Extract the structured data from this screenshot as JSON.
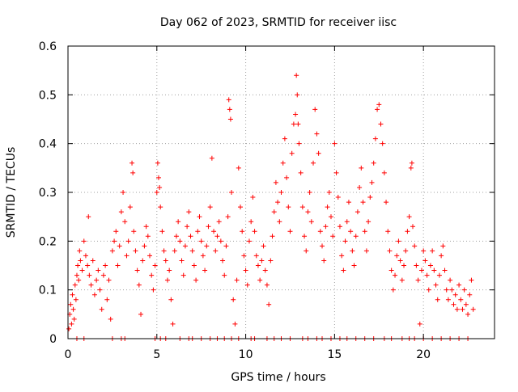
{
  "chart_data": {
    "type": "scatter",
    "title": "Day 062 of 2023, SRMTID for receiver iisc",
    "xlabel": "GPS time / hours",
    "ylabel": "SRMTID / TECUs",
    "xlim": [
      0,
      24
    ],
    "ylim": [
      0,
      0.6
    ],
    "x_ticks": [
      0,
      5,
      10,
      15,
      20
    ],
    "y_ticks": [
      0,
      0.1,
      0.2,
      0.3,
      0.4,
      0.5,
      0.6
    ],
    "x_tick_labels": [
      "0",
      "5",
      "10",
      "15",
      "20"
    ],
    "y_tick_labels": [
      "0",
      "0.1",
      "0.2",
      "0.3",
      "0.4",
      "0.5",
      "0.6"
    ],
    "grid": true,
    "marker": "+",
    "series": [
      {
        "name": "SRMTID",
        "color": "#ff0000",
        "points": [
          [
            0.05,
            0.02
          ],
          [
            0.1,
            0.05
          ],
          [
            0.15,
            0.07
          ],
          [
            0.2,
            0.03
          ],
          [
            0.25,
            0.09
          ],
          [
            0.3,
            0.06
          ],
          [
            0.35,
            0.04
          ],
          [
            0.4,
            0.11
          ],
          [
            0.45,
            0.08
          ],
          [
            0.5,
            0.13
          ],
          [
            0.55,
            0.15
          ],
          [
            0.6,
            0.12
          ],
          [
            0.65,
            0.18
          ],
          [
            0.7,
            0.16
          ],
          [
            0.8,
            0.14
          ],
          [
            0.9,
            0.2
          ],
          [
            1.0,
            0.17
          ],
          [
            1.1,
            0.15
          ],
          [
            1.15,
            0.25
          ],
          [
            1.2,
            0.13
          ],
          [
            1.3,
            0.11
          ],
          [
            1.4,
            0.16
          ],
          [
            1.5,
            0.09
          ],
          [
            1.6,
            0.12
          ],
          [
            1.7,
            0.14
          ],
          [
            1.8,
            0.1
          ],
          [
            1.9,
            0.06
          ],
          [
            2.0,
            0.13
          ],
          [
            2.1,
            0.15
          ],
          [
            2.2,
            0.08
          ],
          [
            2.3,
            0.12
          ],
          [
            2.4,
            0.04
          ],
          [
            2.5,
            0.18
          ],
          [
            2.6,
            0.2
          ],
          [
            2.7,
            0.22
          ],
          [
            2.8,
            0.15
          ],
          [
            2.9,
            0.19
          ],
          [
            3.0,
            0.26
          ],
          [
            3.1,
            0.3
          ],
          [
            3.2,
            0.24
          ],
          [
            3.3,
            0.17
          ],
          [
            3.4,
            0.2
          ],
          [
            3.5,
            0.27
          ],
          [
            3.6,
            0.36
          ],
          [
            3.65,
            0.34
          ],
          [
            3.7,
            0.22
          ],
          [
            3.8,
            0.18
          ],
          [
            3.9,
            0.14
          ],
          [
            4.0,
            0.11
          ],
          [
            4.1,
            0.05
          ],
          [
            4.2,
            0.16
          ],
          [
            4.3,
            0.19
          ],
          [
            4.4,
            0.23
          ],
          [
            4.5,
            0.21
          ],
          [
            4.6,
            0.17
          ],
          [
            4.7,
            0.13
          ],
          [
            4.8,
            0.1
          ],
          [
            4.9,
            0.15
          ],
          [
            5.0,
            0.3
          ],
          [
            5.05,
            0.36
          ],
          [
            5.1,
            0.33
          ],
          [
            5.15,
            0.31
          ],
          [
            5.2,
            0.27
          ],
          [
            5.3,
            0.22
          ],
          [
            5.4,
            0.18
          ],
          [
            5.5,
            0.16
          ],
          [
            5.6,
            0.12
          ],
          [
            5.7,
            0.14
          ],
          [
            5.8,
            0.08
          ],
          [
            5.9,
            0.03
          ],
          [
            6.0,
            0.18
          ],
          [
            6.1,
            0.21
          ],
          [
            6.2,
            0.24
          ],
          [
            6.3,
            0.2
          ],
          [
            6.4,
            0.16
          ],
          [
            6.5,
            0.13
          ],
          [
            6.6,
            0.19
          ],
          [
            6.7,
            0.23
          ],
          [
            6.8,
            0.26
          ],
          [
            6.9,
            0.21
          ],
          [
            7.0,
            0.18
          ],
          [
            7.1,
            0.15
          ],
          [
            7.2,
            0.12
          ],
          [
            7.3,
            0.22
          ],
          [
            7.4,
            0.25
          ],
          [
            7.5,
            0.2
          ],
          [
            7.6,
            0.17
          ],
          [
            7.7,
            0.14
          ],
          [
            7.8,
            0.19
          ],
          [
            7.9,
            0.23
          ],
          [
            8.0,
            0.27
          ],
          [
            8.1,
            0.37
          ],
          [
            8.2,
            0.22
          ],
          [
            8.3,
            0.18
          ],
          [
            8.4,
            0.21
          ],
          [
            8.5,
            0.24
          ],
          [
            8.6,
            0.2
          ],
          [
            8.7,
            0.16
          ],
          [
            8.8,
            0.13
          ],
          [
            8.9,
            0.19
          ],
          [
            9.0,
            0.25
          ],
          [
            9.05,
            0.49
          ],
          [
            9.1,
            0.47
          ],
          [
            9.15,
            0.45
          ],
          [
            9.2,
            0.3
          ],
          [
            9.3,
            0.08
          ],
          [
            9.4,
            0.03
          ],
          [
            9.5,
            0.12
          ],
          [
            9.6,
            0.35
          ],
          [
            9.7,
            0.27
          ],
          [
            9.8,
            0.22
          ],
          [
            9.9,
            0.17
          ],
          [
            10.0,
            0.14
          ],
          [
            10.1,
            0.11
          ],
          [
            10.2,
            0.2
          ],
          [
            10.3,
            0.24
          ],
          [
            10.4,
            0.29
          ],
          [
            10.5,
            0.22
          ],
          [
            10.6,
            0.17
          ],
          [
            10.7,
            0.15
          ],
          [
            10.8,
            0.12
          ],
          [
            10.9,
            0.16
          ],
          [
            11.0,
            0.19
          ],
          [
            11.1,
            0.14
          ],
          [
            11.2,
            0.11
          ],
          [
            11.3,
            0.07
          ],
          [
            11.4,
            0.16
          ],
          [
            11.5,
            0.21
          ],
          [
            11.6,
            0.26
          ],
          [
            11.7,
            0.32
          ],
          [
            11.8,
            0.28
          ],
          [
            11.9,
            0.24
          ],
          [
            12.0,
            0.3
          ],
          [
            12.1,
            0.36
          ],
          [
            12.2,
            0.41
          ],
          [
            12.3,
            0.33
          ],
          [
            12.4,
            0.27
          ],
          [
            12.5,
            0.22
          ],
          [
            12.6,
            0.38
          ],
          [
            12.7,
            0.44
          ],
          [
            12.8,
            0.46
          ],
          [
            12.85,
            0.54
          ],
          [
            12.9,
            0.5
          ],
          [
            12.95,
            0.44
          ],
          [
            13.0,
            0.4
          ],
          [
            13.1,
            0.34
          ],
          [
            13.2,
            0.27
          ],
          [
            13.3,
            0.21
          ],
          [
            13.4,
            0.18
          ],
          [
            13.5,
            0.26
          ],
          [
            13.6,
            0.3
          ],
          [
            13.7,
            0.24
          ],
          [
            13.8,
            0.36
          ],
          [
            13.9,
            0.47
          ],
          [
            14.0,
            0.42
          ],
          [
            14.1,
            0.38
          ],
          [
            14.2,
            0.22
          ],
          [
            14.3,
            0.19
          ],
          [
            14.4,
            0.16
          ],
          [
            14.5,
            0.23
          ],
          [
            14.6,
            0.27
          ],
          [
            14.7,
            0.3
          ],
          [
            14.8,
            0.25
          ],
          [
            14.9,
            0.21
          ],
          [
            15.0,
            0.4
          ],
          [
            15.1,
            0.34
          ],
          [
            15.2,
            0.29
          ],
          [
            15.3,
            0.23
          ],
          [
            15.4,
            0.17
          ],
          [
            15.5,
            0.14
          ],
          [
            15.6,
            0.2
          ],
          [
            15.7,
            0.24
          ],
          [
            15.8,
            0.28
          ],
          [
            15.9,
            0.22
          ],
          [
            16.0,
            0.18
          ],
          [
            16.1,
            0.15
          ],
          [
            16.2,
            0.21
          ],
          [
            16.3,
            0.26
          ],
          [
            16.4,
            0.31
          ],
          [
            16.5,
            0.35
          ],
          [
            16.6,
            0.28
          ],
          [
            16.7,
            0.22
          ],
          [
            16.8,
            0.18
          ],
          [
            16.9,
            0.24
          ],
          [
            17.0,
            0.29
          ],
          [
            17.1,
            0.32
          ],
          [
            17.2,
            0.36
          ],
          [
            17.3,
            0.41
          ],
          [
            17.4,
            0.47
          ],
          [
            17.5,
            0.48
          ],
          [
            17.6,
            0.44
          ],
          [
            17.7,
            0.4
          ],
          [
            17.8,
            0.34
          ],
          [
            17.9,
            0.28
          ],
          [
            18.0,
            0.22
          ],
          [
            18.1,
            0.18
          ],
          [
            18.2,
            0.14
          ],
          [
            18.3,
            0.1
          ],
          [
            18.4,
            0.13
          ],
          [
            18.5,
            0.17
          ],
          [
            18.6,
            0.2
          ],
          [
            18.7,
            0.16
          ],
          [
            18.8,
            0.12
          ],
          [
            18.9,
            0.15
          ],
          [
            19.0,
            0.18
          ],
          [
            19.1,
            0.22
          ],
          [
            19.2,
            0.25
          ],
          [
            19.3,
            0.35
          ],
          [
            19.35,
            0.36
          ],
          [
            19.4,
            0.23
          ],
          [
            19.5,
            0.19
          ],
          [
            19.6,
            0.15
          ],
          [
            19.7,
            0.12
          ],
          [
            19.8,
            0.03
          ],
          [
            19.9,
            0.14
          ],
          [
            20.0,
            0.18
          ],
          [
            20.1,
            0.16
          ],
          [
            20.2,
            0.13
          ],
          [
            20.3,
            0.1
          ],
          [
            20.4,
            0.15
          ],
          [
            20.5,
            0.18
          ],
          [
            20.6,
            0.14
          ],
          [
            20.7,
            0.11
          ],
          [
            20.8,
            0.08
          ],
          [
            20.9,
            0.13
          ],
          [
            21.0,
            0.17
          ],
          [
            21.1,
            0.19
          ],
          [
            21.2,
            0.14
          ],
          [
            21.3,
            0.1
          ],
          [
            21.4,
            0.08
          ],
          [
            21.5,
            0.12
          ],
          [
            21.6,
            0.1
          ],
          [
            21.7,
            0.07
          ],
          [
            21.8,
            0.09
          ],
          [
            21.9,
            0.06
          ],
          [
            22.0,
            0.11
          ],
          [
            22.1,
            0.08
          ],
          [
            22.2,
            0.06
          ],
          [
            22.3,
            0.1
          ],
          [
            22.4,
            0.07
          ],
          [
            22.5,
            0.05
          ],
          [
            22.6,
            0.09
          ],
          [
            22.7,
            0.12
          ],
          [
            22.8,
            0.06
          ],
          [
            0.5,
            0.0
          ],
          [
            0.9,
            0.0
          ],
          [
            2.5,
            0.0
          ],
          [
            3.0,
            0.0
          ],
          [
            3.2,
            0.0
          ],
          [
            4.9,
            0.0
          ],
          [
            5.2,
            0.0
          ],
          [
            5.5,
            0.0
          ],
          [
            6.3,
            0.0
          ],
          [
            6.8,
            0.0
          ],
          [
            7.0,
            0.0
          ],
          [
            7.5,
            0.0
          ],
          [
            8.0,
            0.0
          ],
          [
            8.4,
            0.0
          ],
          [
            8.8,
            0.0
          ],
          [
            9.2,
            0.0
          ],
          [
            9.6,
            0.0
          ],
          [
            10.3,
            0.0
          ],
          [
            10.5,
            0.0
          ],
          [
            11.2,
            0.0
          ],
          [
            11.6,
            0.0
          ],
          [
            12.0,
            0.0
          ],
          [
            12.5,
            0.0
          ],
          [
            13.2,
            0.0
          ],
          [
            13.5,
            0.0
          ],
          [
            14.0,
            0.0
          ],
          [
            14.3,
            0.0
          ],
          [
            14.8,
            0.0
          ],
          [
            15.3,
            0.0
          ],
          [
            15.7,
            0.0
          ],
          [
            16.2,
            0.0
          ],
          [
            16.7,
            0.0
          ],
          [
            17.2,
            0.0
          ],
          [
            17.8,
            0.0
          ],
          [
            18.2,
            0.0
          ],
          [
            18.8,
            0.0
          ],
          [
            19.2,
            0.0
          ],
          [
            19.5,
            0.0
          ],
          [
            20.0,
            0.0
          ],
          [
            20.5,
            0.0
          ],
          [
            21.0,
            0.0
          ],
          [
            21.5,
            0.0
          ],
          [
            22.0,
            0.0
          ],
          [
            22.5,
            0.0
          ]
        ]
      }
    ]
  }
}
